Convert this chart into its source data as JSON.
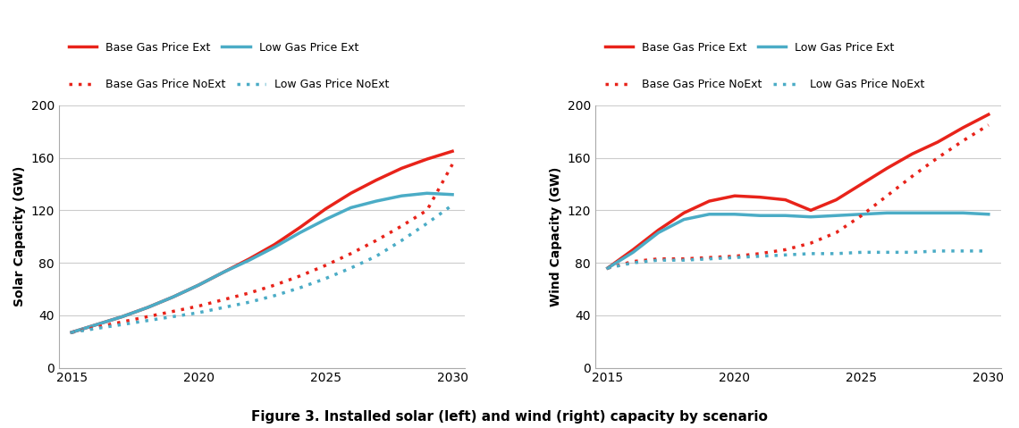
{
  "years": [
    2015,
    2016,
    2017,
    2018,
    2019,
    2020,
    2021,
    2022,
    2023,
    2024,
    2025,
    2026,
    2027,
    2028,
    2029,
    2030
  ],
  "solar_base_ext": [
    27,
    33,
    39,
    46,
    54,
    63,
    73,
    83,
    94,
    107,
    121,
    133,
    143,
    152,
    159,
    165
  ],
  "solar_low_ext": [
    27,
    33,
    39,
    46,
    54,
    63,
    73,
    82,
    92,
    103,
    113,
    122,
    127,
    131,
    133,
    132
  ],
  "solar_base_noext": [
    27,
    31,
    35,
    39,
    43,
    47,
    52,
    57,
    63,
    70,
    78,
    87,
    97,
    108,
    120,
    155
  ],
  "solar_low_noext": [
    27,
    30,
    33,
    36,
    39,
    42,
    46,
    50,
    55,
    61,
    68,
    76,
    85,
    97,
    110,
    124
  ],
  "wind_base_ext": [
    76,
    90,
    105,
    118,
    127,
    131,
    130,
    128,
    120,
    128,
    140,
    152,
    163,
    172,
    183,
    193
  ],
  "wind_low_ext": [
    76,
    88,
    103,
    113,
    117,
    117,
    116,
    116,
    115,
    116,
    117,
    118,
    118,
    118,
    118,
    117
  ],
  "wind_base_noext": [
    76,
    81,
    83,
    83,
    84,
    85,
    87,
    90,
    95,
    103,
    116,
    131,
    146,
    160,
    173,
    185
  ],
  "wind_low_noext": [
    76,
    80,
    82,
    82,
    83,
    84,
    85,
    86,
    87,
    87,
    88,
    88,
    88,
    89,
    89,
    89
  ],
  "color_red": "#e8231a",
  "color_blue": "#4bacc6",
  "color_black": "#000000",
  "ylim_solar": [
    0,
    200
  ],
  "ylim_wind": [
    0,
    200
  ],
  "yticks": [
    0,
    40,
    80,
    120,
    160,
    200
  ],
  "xlim": [
    2014.5,
    2030.5
  ],
  "xticks": [
    2015,
    2020,
    2025,
    2030
  ],
  "ylabel_solar": "Solar Capacity (GW)",
  "ylabel_wind": "Wind Capacity (GW)",
  "legend_entries": [
    {
      "label": "Base Gas Price Ext",
      "color": "#e8231a",
      "ls": "solid"
    },
    {
      "label": "Low Gas Price Ext",
      "color": "#4bacc6",
      "ls": "solid"
    },
    {
      "label": "Base Gas Price NoExt",
      "color": "#e8231a",
      "ls": "dotted"
    },
    {
      "label": "Low Gas Price NoExt",
      "color": "#4bacc6",
      "ls": "dotted"
    }
  ],
  "figure_caption": "Figure 3. Installed solar (left) and wind (right) capacity by scenario",
  "lw_solid": 2.5,
  "lw_dotted": 2.5,
  "dot_size": 6
}
